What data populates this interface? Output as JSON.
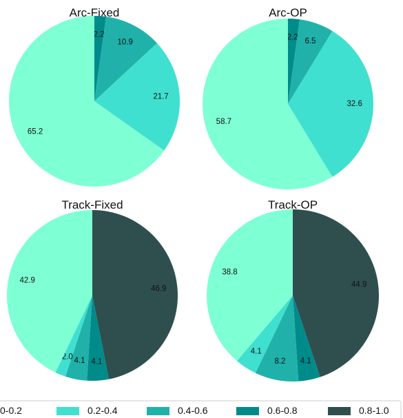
{
  "chart_data": [
    {
      "type": "pie",
      "title": "Arc-Fixed",
      "slices": [
        {
          "category": "0.6-0.8",
          "value": 2.2
        },
        {
          "category": "0.4-0.6",
          "value": 10.9
        },
        {
          "category": "0.2-0.4",
          "value": 21.7
        },
        {
          "category": "0-0.2",
          "value": 65.2
        }
      ]
    },
    {
      "type": "pie",
      "title": "Arc-OP",
      "slices": [
        {
          "category": "0.6-0.8",
          "value": 2.2
        },
        {
          "category": "0.4-0.6",
          "value": 6.5
        },
        {
          "category": "0.2-0.4",
          "value": 32.6
        },
        {
          "category": "0-0.2",
          "value": 58.7
        }
      ]
    },
    {
      "type": "pie",
      "title": "Track-Fixed",
      "slices": [
        {
          "category": "0.8-1.0",
          "value": 46.9
        },
        {
          "category": "0.6-0.8",
          "value": 4.1
        },
        {
          "category": "0.4-0.6",
          "value": 4.1
        },
        {
          "category": "0.2-0.4",
          "value": 2.0
        },
        {
          "category": "0-0.2",
          "value": 42.9
        }
      ]
    },
    {
      "type": "pie",
      "title": "Track-OP",
      "slices": [
        {
          "category": "0.8-1.0",
          "value": 44.9
        },
        {
          "category": "0.6-0.8",
          "value": 4.1
        },
        {
          "category": "0.4-0.6",
          "value": 8.2
        },
        {
          "category": "0.2-0.4",
          "value": 4.1
        },
        {
          "category": "0-0.2",
          "value": 38.8
        }
      ]
    }
  ],
  "legend": {
    "placement": "bottom",
    "items": [
      {
        "label": "0-0.2",
        "color": "#7fffd4"
      },
      {
        "label": "0.2-0.4",
        "color": "#40e0d0"
      },
      {
        "label": "0.4-0.6",
        "color": "#20b2aa"
      },
      {
        "label": "0.6-0.8",
        "color": "#008b8b"
      },
      {
        "label": "0.8-1.0",
        "color": "#2f4f4f"
      }
    ]
  }
}
